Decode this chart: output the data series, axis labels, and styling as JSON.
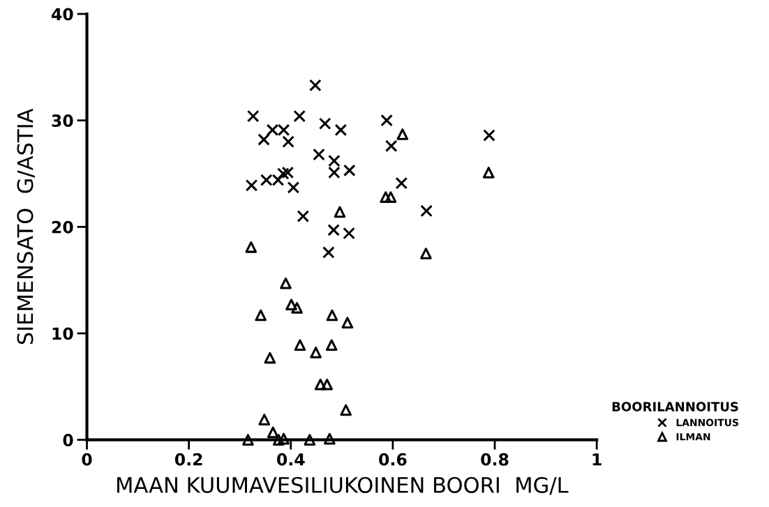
{
  "chart_data": {
    "type": "scatter",
    "xlabel": "MAAN KUUMAVESILIUKOINEN BOORI  MG/L",
    "ylabel": "SIEMENSATO  G/ASTIA",
    "legend_title": "BOORILANNOITUS",
    "legend": "bottom right",
    "grid": false,
    "xlim": [
      0,
      1
    ],
    "xticks": [
      0,
      0.2,
      0.4,
      0.6,
      0.8,
      1
    ],
    "ylim": [
      0,
      40
    ],
    "yticks": [
      0,
      10,
      20,
      30,
      40
    ],
    "series": [
      {
        "name": "LANNOITUS",
        "color": "#000000",
        "marker": "cross",
        "x": [
          0.326,
          0.347,
          0.364,
          0.386,
          0.395,
          0.417,
          0.448,
          0.467,
          0.498,
          0.455,
          0.485,
          0.485,
          0.515,
          0.323,
          0.352,
          0.375,
          0.385,
          0.394,
          0.405,
          0.424,
          0.484,
          0.514,
          0.474,
          0.588,
          0.597,
          0.789,
          0.617,
          0.666
        ],
        "values": [
          30.4,
          28.2,
          29.1,
          29.1,
          28.0,
          30.4,
          33.3,
          29.7,
          29.1,
          26.8,
          26.2,
          25.1,
          25.3,
          23.9,
          24.4,
          24.4,
          25.0,
          25.1,
          23.7,
          21.0,
          19.7,
          19.4,
          17.6,
          30.0,
          27.6,
          28.6,
          24.1,
          21.5
        ]
      },
      {
        "name": "ILMAN",
        "color": "#000000",
        "marker": "triangle",
        "x": [
          0.322,
          0.496,
          0.586,
          0.619,
          0.596,
          0.788,
          0.665,
          0.39,
          0.401,
          0.412,
          0.341,
          0.481,
          0.511,
          0.418,
          0.449,
          0.48,
          0.359,
          0.458,
          0.471,
          0.508,
          0.348,
          0.365,
          0.376,
          0.386,
          0.316,
          0.437,
          0.476
        ],
        "values": [
          18.1,
          21.4,
          22.8,
          28.7,
          22.8,
          25.1,
          17.5,
          14.7,
          12.7,
          12.4,
          11.7,
          11.7,
          11.0,
          8.9,
          8.2,
          8.9,
          7.7,
          5.2,
          5.2,
          2.8,
          1.9,
          0.7,
          0,
          0.1,
          0,
          0,
          0.1
        ]
      }
    ]
  }
}
